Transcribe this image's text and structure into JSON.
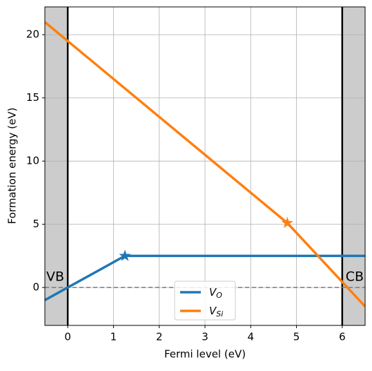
{
  "chart_data": {
    "type": "line",
    "xlabel": "Fermi level (eV)",
    "ylabel": "Formation energy (eV)",
    "xlim": [
      -0.5,
      6.5
    ],
    "ylim": [
      -3,
      22.2
    ],
    "xticks": [
      0,
      1,
      2,
      3,
      4,
      5,
      6
    ],
    "yticks": [
      0,
      5,
      10,
      15,
      20
    ],
    "grid": true,
    "legend": "lower center",
    "band_edges": {
      "vbm": 0,
      "cbm": 6,
      "vb_label": "VB",
      "cb_label": "CB",
      "shade_color": "#cccccc"
    },
    "series": [
      {
        "name": "V",
        "subscript": "O",
        "color": "#1f77b4",
        "x": [
          -0.5,
          1.25,
          6.5
        ],
        "values": [
          -1,
          2.5,
          2.5
        ],
        "star": {
          "x": 1.25,
          "y": 2.5
        }
      },
      {
        "name": "V",
        "subscript": "Si",
        "color": "#ff7f0e",
        "x": [
          -0.5,
          4.8,
          6.5
        ],
        "values": [
          21,
          5.1,
          -1.5
        ],
        "star": {
          "x": 4.8,
          "y": 5.1
        }
      }
    ]
  }
}
